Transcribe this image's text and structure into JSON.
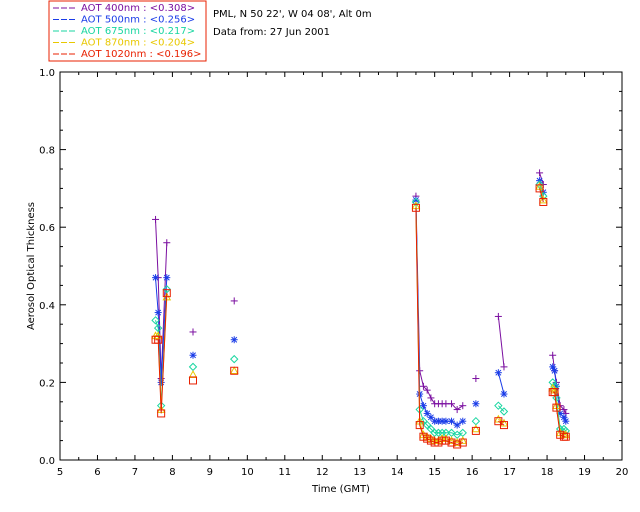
{
  "chart_data": {
    "type": "scatter",
    "site_info": "PML, N 50 22', W 04 08', Alt 0m",
    "date_info": "Data from: 27 Jun 2001",
    "xlabel": "Time (GMT)",
    "ylabel": "Aerosol Optical Thickness",
    "xlim": [
      5,
      20
    ],
    "ylim": [
      0.0,
      1.0
    ],
    "x_ticks": [
      "5",
      "6",
      "7",
      "8",
      "9",
      "10",
      "11",
      "12",
      "13",
      "14",
      "15",
      "16",
      "17",
      "18",
      "19",
      "20"
    ],
    "y_ticks": [
      "0.0",
      "0.2",
      "0.4",
      "0.6",
      "0.8",
      "1.0"
    ],
    "colors": {
      "400": "#7B0FA0",
      "500": "#1A3CE8",
      "675": "#19D6A0",
      "870": "#E8C800",
      "1020": "#E82000"
    },
    "series": [
      {
        "name": "AOT 400nm",
        "legend": "AOT  400nm : <0.308>",
        "color_key": "400",
        "marker": "plus",
        "segments": [
          [
            [
              7.55,
              0.62
            ],
            [
              7.62,
              0.47
            ],
            [
              7.7,
              0.21
            ],
            [
              7.85,
              0.56
            ]
          ],
          [
            [
              8.55,
              0.33
            ]
          ],
          [
            [
              9.65,
              0.41
            ]
          ],
          [
            [
              14.5,
              0.68
            ],
            [
              14.6,
              0.23
            ],
            [
              14.7,
              0.19
            ],
            [
              14.8,
              0.18
            ],
            [
              14.9,
              0.16
            ],
            [
              15.0,
              0.145
            ],
            [
              15.1,
              0.145
            ],
            [
              15.2,
              0.145
            ],
            [
              15.3,
              0.145
            ],
            [
              15.45,
              0.145
            ],
            [
              15.6,
              0.13
            ],
            [
              15.75,
              0.14
            ]
          ],
          [
            [
              16.1,
              0.21
            ]
          ],
          [
            [
              16.7,
              0.37
            ],
            [
              16.85,
              0.24
            ]
          ],
          [
            [
              17.8,
              0.74
            ],
            [
              17.9,
              0.71
            ]
          ],
          [
            [
              18.15,
              0.27
            ],
            [
              18.2,
              0.23
            ],
            [
              18.25,
              0.2
            ],
            [
              18.35,
              0.14
            ],
            [
              18.45,
              0.13
            ],
            [
              18.5,
              0.12
            ]
          ]
        ]
      },
      {
        "name": "AOT 500nm",
        "legend": "AOT  500nm : <0.256>",
        "color_key": "500",
        "marker": "asterisk",
        "segments": [
          [
            [
              7.55,
              0.47
            ],
            [
              7.62,
              0.38
            ],
            [
              7.7,
              0.2
            ],
            [
              7.85,
              0.47
            ]
          ],
          [
            [
              8.55,
              0.27
            ]
          ],
          [
            [
              9.65,
              0.31
            ]
          ],
          [
            [
              14.5,
              0.67
            ],
            [
              14.6,
              0.17
            ],
            [
              14.7,
              0.14
            ],
            [
              14.8,
              0.12
            ],
            [
              14.9,
              0.11
            ],
            [
              15.0,
              0.1
            ],
            [
              15.1,
              0.1
            ],
            [
              15.2,
              0.1
            ],
            [
              15.3,
              0.1
            ],
            [
              15.45,
              0.1
            ],
            [
              15.6,
              0.09
            ],
            [
              15.75,
              0.1
            ]
          ],
          [
            [
              16.1,
              0.145
            ]
          ],
          [
            [
              16.7,
              0.225
            ],
            [
              16.85,
              0.17
            ]
          ],
          [
            [
              17.8,
              0.72
            ],
            [
              17.9,
              0.69
            ]
          ],
          [
            [
              18.15,
              0.24
            ],
            [
              18.2,
              0.23
            ],
            [
              18.25,
              0.19
            ],
            [
              18.35,
              0.12
            ],
            [
              18.45,
              0.11
            ],
            [
              18.5,
              0.1
            ]
          ]
        ]
      },
      {
        "name": "AOT 675nm",
        "legend": "AOT  675nm : <0.217>",
        "color_key": "675",
        "marker": "diamond",
        "segments": [
          [
            [
              7.55,
              0.36
            ],
            [
              7.62,
              0.34
            ],
            [
              7.7,
              0.14
            ],
            [
              7.85,
              0.44
            ]
          ],
          [
            [
              8.55,
              0.24
            ]
          ],
          [
            [
              9.65,
              0.26
            ]
          ],
          [
            [
              14.5,
              0.665
            ],
            [
              14.6,
              0.13
            ],
            [
              14.7,
              0.1
            ],
            [
              14.8,
              0.09
            ],
            [
              14.9,
              0.08
            ],
            [
              15.0,
              0.07
            ],
            [
              15.1,
              0.07
            ],
            [
              15.2,
              0.07
            ],
            [
              15.3,
              0.07
            ],
            [
              15.45,
              0.07
            ],
            [
              15.6,
              0.065
            ],
            [
              15.75,
              0.07
            ]
          ],
          [
            [
              16.1,
              0.1
            ]
          ],
          [
            [
              16.7,
              0.14
            ],
            [
              16.85,
              0.125
            ]
          ],
          [
            [
              17.8,
              0.71
            ],
            [
              17.9,
              0.68
            ]
          ],
          [
            [
              18.15,
              0.2
            ],
            [
              18.2,
              0.19
            ],
            [
              18.25,
              0.16
            ],
            [
              18.35,
              0.08
            ],
            [
              18.45,
              0.08
            ],
            [
              18.5,
              0.075
            ]
          ]
        ]
      },
      {
        "name": "AOT 870nm",
        "legend": "AOT  870nm : <0.204>",
        "color_key": "870",
        "marker": "triangle",
        "segments": [
          [
            [
              7.55,
              0.32
            ],
            [
              7.62,
              0.32
            ],
            [
              7.7,
              0.13
            ],
            [
              7.85,
              0.42
            ]
          ],
          [
            [
              8.55,
              0.22
            ]
          ],
          [
            [
              9.65,
              0.23
            ]
          ],
          [
            [
              14.5,
              0.655
            ],
            [
              14.6,
              0.1
            ],
            [
              14.7,
              0.065
            ],
            [
              14.8,
              0.06
            ],
            [
              14.9,
              0.055
            ],
            [
              15.0,
              0.05
            ],
            [
              15.1,
              0.05
            ],
            [
              15.2,
              0.055
            ],
            [
              15.3,
              0.055
            ],
            [
              15.45,
              0.05
            ],
            [
              15.6,
              0.045
            ],
            [
              15.75,
              0.05
            ]
          ],
          [
            [
              16.1,
              0.08
            ]
          ],
          [
            [
              16.7,
              0.105
            ],
            [
              16.85,
              0.095
            ]
          ],
          [
            [
              17.8,
              0.705
            ],
            [
              17.9,
              0.67
            ]
          ],
          [
            [
              18.15,
              0.185
            ],
            [
              18.2,
              0.18
            ],
            [
              18.25,
              0.14
            ],
            [
              18.35,
              0.07
            ],
            [
              18.45,
              0.065
            ],
            [
              18.5,
              0.065
            ]
          ]
        ]
      },
      {
        "name": "AOT 1020nm",
        "legend": "AOT 1020nm : <0.196>",
        "color_key": "1020",
        "marker": "square",
        "segments": [
          [
            [
              7.55,
              0.31
            ],
            [
              7.62,
              0.31
            ],
            [
              7.7,
              0.12
            ],
            [
              7.85,
              0.43
            ]
          ],
          [
            [
              8.55,
              0.205
            ]
          ],
          [
            [
              9.65,
              0.23
            ]
          ],
          [
            [
              14.5,
              0.65
            ],
            [
              14.6,
              0.09
            ],
            [
              14.7,
              0.06
            ],
            [
              14.8,
              0.055
            ],
            [
              14.9,
              0.05
            ],
            [
              15.0,
              0.045
            ],
            [
              15.1,
              0.045
            ],
            [
              15.2,
              0.05
            ],
            [
              15.3,
              0.05
            ],
            [
              15.45,
              0.045
            ],
            [
              15.6,
              0.04
            ],
            [
              15.75,
              0.045
            ]
          ],
          [
            [
              16.1,
              0.075
            ]
          ],
          [
            [
              16.7,
              0.1
            ],
            [
              16.85,
              0.09
            ]
          ],
          [
            [
              17.8,
              0.7
            ],
            [
              17.9,
              0.665
            ]
          ],
          [
            [
              18.15,
              0.175
            ],
            [
              18.2,
              0.175
            ],
            [
              18.25,
              0.135
            ],
            [
              18.35,
              0.065
            ],
            [
              18.45,
              0.06
            ],
            [
              18.5,
              0.06
            ]
          ]
        ]
      }
    ]
  }
}
